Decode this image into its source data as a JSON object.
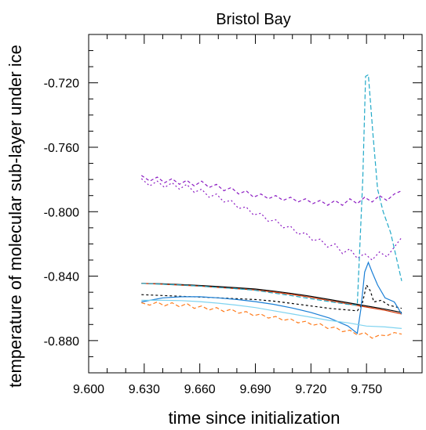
{
  "chart_data": {
    "type": "line",
    "title": "Bristol Bay",
    "xlabel": "time since initialization",
    "ylabel": "temperature of molecular sub-layer under ice",
    "xlim": [
      9.6,
      9.78
    ],
    "ylim": [
      -0.9,
      -0.69
    ],
    "xticks": [
      "9.600",
      "9.630",
      "9.660",
      "9.690",
      "9.720",
      "9.750"
    ],
    "yticks": [
      "-0.720",
      "-0.760",
      "-0.800",
      "-0.840",
      "-0.880"
    ],
    "grid": false,
    "series": [
      {
        "color": "#8b1ac2",
        "dash": "4,3",
        "x": [
          9.6285,
          9.633,
          9.637,
          9.641,
          9.645,
          9.649,
          9.653,
          9.657,
          9.661,
          9.665,
          9.669,
          9.673,
          9.677,
          9.681,
          9.685,
          9.689,
          9.693,
          9.697,
          9.701,
          9.705,
          9.709,
          9.713,
          9.717,
          9.721,
          9.725,
          9.729,
          9.733,
          9.737,
          9.741,
          9.745,
          9.749,
          9.753,
          9.757,
          9.761,
          9.765,
          9.769
        ],
        "y": [
          -0.7775,
          -0.781,
          -0.7785,
          -0.782,
          -0.7795,
          -0.783,
          -0.7805,
          -0.784,
          -0.781,
          -0.785,
          -0.783,
          -0.787,
          -0.785,
          -0.789,
          -0.787,
          -0.791,
          -0.789,
          -0.792,
          -0.79,
          -0.793,
          -0.791,
          -0.794,
          -0.792,
          -0.795,
          -0.793,
          -0.796,
          -0.793,
          -0.796,
          -0.792,
          -0.795,
          -0.791,
          -0.794,
          -0.79,
          -0.793,
          -0.789,
          -0.787
        ]
      },
      {
        "color": "#8b1ac2",
        "dash": "2,3",
        "x": [
          9.6285,
          9.633,
          9.637,
          9.641,
          9.645,
          9.649,
          9.653,
          9.657,
          9.661,
          9.665,
          9.669,
          9.673,
          9.677,
          9.681,
          9.685,
          9.689,
          9.693,
          9.697,
          9.701,
          9.705,
          9.709,
          9.713,
          9.717,
          9.721,
          9.725,
          9.729,
          9.733,
          9.737,
          9.741,
          9.745,
          9.749,
          9.753,
          9.757,
          9.761,
          9.765,
          9.769
        ],
        "y": [
          -0.7795,
          -0.784,
          -0.781,
          -0.785,
          -0.782,
          -0.786,
          -0.783,
          -0.788,
          -0.786,
          -0.791,
          -0.789,
          -0.794,
          -0.793,
          -0.798,
          -0.797,
          -0.802,
          -0.801,
          -0.806,
          -0.805,
          -0.81,
          -0.809,
          -0.814,
          -0.813,
          -0.818,
          -0.817,
          -0.822,
          -0.82,
          -0.826,
          -0.823,
          -0.829,
          -0.826,
          -0.83,
          -0.825,
          -0.828,
          -0.822,
          -0.816
        ]
      },
      {
        "color": "#000000",
        "dash": "",
        "x": [
          9.6285,
          9.64,
          9.65,
          9.66,
          9.67,
          9.68,
          9.69,
          9.7,
          9.71,
          9.72,
          9.73,
          9.74,
          9.75,
          9.76,
          9.769
        ],
        "y": [
          -0.8445,
          -0.8448,
          -0.8452,
          -0.8458,
          -0.8465,
          -0.8472,
          -0.848,
          -0.8493,
          -0.8508,
          -0.8525,
          -0.8545,
          -0.8565,
          -0.8585,
          -0.8605,
          -0.8625
        ]
      },
      {
        "color": "#d63a0a",
        "dash": "",
        "x": [
          9.6285,
          9.64,
          9.65,
          9.66,
          9.67,
          9.68,
          9.69,
          9.7,
          9.71,
          9.72,
          9.73,
          9.74,
          9.75,
          9.76,
          9.769
        ],
        "y": [
          -0.8445,
          -0.845,
          -0.8456,
          -0.8462,
          -0.847,
          -0.8478,
          -0.8486,
          -0.8499,
          -0.8514,
          -0.8532,
          -0.8552,
          -0.8572,
          -0.8592,
          -0.8612,
          -0.8635
        ]
      },
      {
        "color": "#000000",
        "dash": "3,3",
        "x": [
          9.6285,
          9.64,
          9.65,
          9.66,
          9.67,
          9.68,
          9.69,
          9.7,
          9.71,
          9.72,
          9.73,
          9.74,
          9.745,
          9.7475,
          9.75,
          9.752,
          9.754,
          9.758,
          9.762,
          9.769
        ],
        "y": [
          -0.8515,
          -0.852,
          -0.8525,
          -0.853,
          -0.8535,
          -0.854,
          -0.8545,
          -0.8555,
          -0.857,
          -0.8585,
          -0.86,
          -0.861,
          -0.8615,
          -0.858,
          -0.8455,
          -0.849,
          -0.856,
          -0.855,
          -0.858,
          -0.86
        ]
      },
      {
        "color": "#1a7fd6",
        "dash": "",
        "x": [
          9.6285,
          9.64,
          9.65,
          9.66,
          9.67,
          9.68,
          9.69,
          9.7,
          9.71,
          9.72,
          9.73,
          9.74,
          9.745,
          9.747,
          9.749,
          9.751,
          9.753,
          9.756,
          9.76,
          9.765,
          9.769
        ],
        "y": [
          -0.856,
          -0.8535,
          -0.8528,
          -0.8528,
          -0.8535,
          -0.8545,
          -0.8558,
          -0.8575,
          -0.8598,
          -0.8625,
          -0.866,
          -0.871,
          -0.8755,
          -0.86,
          -0.8375,
          -0.8315,
          -0.8375,
          -0.8455,
          -0.8535,
          -0.856,
          -0.8635
        ]
      },
      {
        "color": "#22a9c8",
        "dash": "6,3",
        "x": [
          9.6285,
          9.64,
          9.65,
          9.66,
          9.67,
          9.68,
          9.69,
          9.7,
          9.71,
          9.72,
          9.73,
          9.74,
          9.745,
          9.748,
          9.7495,
          9.751,
          9.7535,
          9.756,
          9.759,
          9.763,
          9.769
        ],
        "y": [
          -0.8445,
          -0.845,
          -0.8455,
          -0.8462,
          -0.847,
          -0.8478,
          -0.8488,
          -0.8505,
          -0.8522,
          -0.854,
          -0.8558,
          -0.8575,
          -0.858,
          -0.78,
          -0.716,
          -0.715,
          -0.752,
          -0.786,
          -0.8,
          -0.813,
          -0.843
        ]
      },
      {
        "color": "#7fd3f0",
        "dash": "",
        "x": [
          9.6285,
          9.64,
          9.65,
          9.66,
          9.67,
          9.68,
          9.69,
          9.7,
          9.71,
          9.72,
          9.73,
          9.74,
          9.75,
          9.76,
          9.769
        ],
        "y": [
          -0.855,
          -0.855,
          -0.8552,
          -0.8558,
          -0.8568,
          -0.858,
          -0.8595,
          -0.8615,
          -0.8635,
          -0.8655,
          -0.8675,
          -0.869,
          -0.871,
          -0.8715,
          -0.8725
        ]
      },
      {
        "color": "#ff7a1a",
        "dash": "5,3",
        "x": [
          9.6285,
          9.633,
          9.637,
          9.641,
          9.645,
          9.649,
          9.653,
          9.657,
          9.661,
          9.665,
          9.669,
          9.673,
          9.677,
          9.681,
          9.685,
          9.689,
          9.693,
          9.697,
          9.701,
          9.705,
          9.709,
          9.713,
          9.717,
          9.721,
          9.725,
          9.729,
          9.733,
          9.737,
          9.741,
          9.745,
          9.749,
          9.753,
          9.757,
          9.761,
          9.765,
          9.769
        ],
        "y": [
          -0.8565,
          -0.858,
          -0.856,
          -0.8585,
          -0.8565,
          -0.859,
          -0.857,
          -0.86,
          -0.8585,
          -0.861,
          -0.8595,
          -0.862,
          -0.8605,
          -0.863,
          -0.862,
          -0.8645,
          -0.8635,
          -0.866,
          -0.865,
          -0.8675,
          -0.8665,
          -0.869,
          -0.868,
          -0.8705,
          -0.8695,
          -0.8725,
          -0.8715,
          -0.8745,
          -0.8735,
          -0.8765,
          -0.875,
          -0.8785,
          -0.8765,
          -0.877,
          -0.875,
          -0.876
        ]
      }
    ]
  }
}
